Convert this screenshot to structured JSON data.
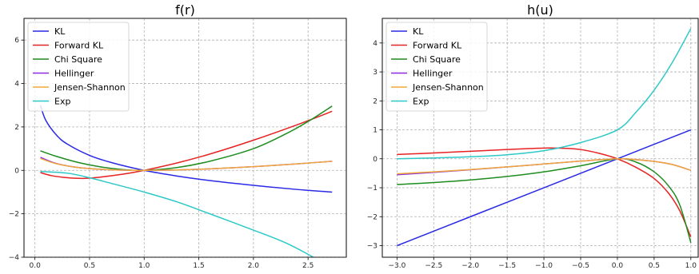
{
  "chart_data": [
    {
      "type": "line",
      "title": "f(r)",
      "xlabel": "",
      "ylabel": "",
      "xlim": [
        -0.1,
        2.85
      ],
      "ylim": [
        -4,
        7
      ],
      "xticks": [
        0.0,
        0.5,
        1.0,
        1.5,
        2.0,
        2.5
      ],
      "xtick_labels": [
        "0.0",
        "0.5",
        "1.0",
        "1.5",
        "2.0",
        "2.5"
      ],
      "yticks": [
        -4,
        -2,
        0,
        2,
        4,
        6
      ],
      "ytick_labels": [
        "−4",
        "−2",
        "0",
        "2",
        "4",
        "6"
      ],
      "grid": true,
      "legend_position": "top-left",
      "series": [
        {
          "name": "KL",
          "color": "#2a2ae6",
          "x": [
            0.05,
            0.1,
            0.2,
            0.3,
            0.5,
            0.7,
            1.0,
            1.3,
            1.6,
            2.0,
            2.4,
            2.72
          ],
          "y": [
            3.0,
            2.3,
            1.61,
            1.2,
            0.69,
            0.36,
            0.0,
            -0.26,
            -0.47,
            -0.69,
            -0.88,
            -1.0
          ]
        },
        {
          "name": "Forward KL",
          "color": "#e62222",
          "x": [
            0.05,
            0.15,
            0.3,
            0.45,
            0.6,
            0.8,
            1.0,
            1.3,
            1.6,
            2.0,
            2.4,
            2.72
          ],
          "y": [
            -0.1,
            -0.24,
            -0.34,
            -0.37,
            -0.31,
            -0.18,
            0.0,
            0.34,
            0.75,
            1.39,
            2.1,
            2.72
          ]
        },
        {
          "name": "Chi Square",
          "color": "#1f8c1f",
          "x": [
            0.05,
            0.2,
            0.4,
            0.6,
            0.8,
            1.0,
            1.3,
            1.6,
            2.0,
            2.3,
            2.5,
            2.72
          ],
          "y": [
            0.9,
            0.64,
            0.36,
            0.16,
            0.04,
            0.0,
            0.13,
            0.42,
            1.0,
            1.69,
            2.25,
            2.96
          ]
        },
        {
          "name": "Hellinger",
          "color": "#8a2be2",
          "x": [
            0.05,
            0.2,
            0.4,
            0.6,
            0.8,
            1.0,
            1.3,
            1.6,
            2.0,
            2.4,
            2.72
          ],
          "y": [
            0.6,
            0.31,
            0.13,
            0.05,
            0.01,
            0.0,
            0.02,
            0.07,
            0.17,
            0.3,
            0.42
          ]
        },
        {
          "name": "Jensen-Shannon",
          "color": "#f0a83c",
          "x": [
            0.05,
            0.2,
            0.4,
            0.6,
            0.8,
            1.0,
            1.3,
            1.6,
            2.0,
            2.4,
            2.72
          ],
          "y": [
            0.55,
            0.3,
            0.13,
            0.05,
            0.01,
            0.0,
            0.02,
            0.07,
            0.17,
            0.3,
            0.42
          ]
        },
        {
          "name": "Exp",
          "color": "#2ec8c8",
          "x": [
            0.05,
            0.3,
            0.5,
            0.7,
            1.0,
            1.3,
            1.6,
            2.0,
            2.3,
            2.55
          ],
          "y": [
            -0.05,
            -0.13,
            -0.34,
            -0.6,
            -1.0,
            -1.45,
            -2.0,
            -2.75,
            -3.35,
            -4.0
          ]
        }
      ]
    },
    {
      "type": "line",
      "title": "h(u)",
      "xlabel": "",
      "ylabel": "",
      "xlim": [
        -3.2,
        1.1
      ],
      "ylim": [
        -3.4,
        4.85
      ],
      "xticks": [
        -3.0,
        -2.5,
        -2.0,
        -1.5,
        -1.0,
        -0.5,
        0.0,
        0.5,
        1.0
      ],
      "xtick_labels": [
        "−3.0",
        "−2.5",
        "−2.0",
        "−1.5",
        "−1.0",
        "−0.5",
        "0.0",
        "0.5",
        "1.0"
      ],
      "yticks": [
        -3,
        -2,
        -1,
        0,
        1,
        2,
        3,
        4
      ],
      "ytick_labels": [
        "−3",
        "−2",
        "−1",
        "0",
        "1",
        "2",
        "3",
        "4"
      ],
      "grid": true,
      "legend_position": "top-left",
      "series": [
        {
          "name": "KL",
          "color": "#2a2ae6",
          "x": [
            -3.0,
            -2.0,
            -1.0,
            0.0,
            1.0
          ],
          "y": [
            -3.0,
            -2.0,
            -1.0,
            0.0,
            1.0
          ]
        },
        {
          "name": "Forward KL",
          "color": "#e62222",
          "x": [
            -3.0,
            -2.5,
            -2.0,
            -1.5,
            -1.0,
            -0.7,
            -0.5,
            -0.25,
            0.0,
            0.25,
            0.5,
            0.7,
            0.85,
            1.0
          ],
          "y": [
            0.15,
            0.2,
            0.26,
            0.32,
            0.37,
            0.36,
            0.32,
            0.19,
            0.0,
            -0.29,
            -0.68,
            -1.2,
            -1.8,
            -2.7
          ]
        },
        {
          "name": "Chi Square",
          "color": "#1f8c1f",
          "x": [
            -3.0,
            -2.5,
            -2.0,
            -1.5,
            -1.0,
            -0.5,
            0.0,
            0.25,
            0.5,
            0.7,
            0.85,
            1.0
          ],
          "y": [
            -0.89,
            -0.82,
            -0.73,
            -0.61,
            -0.45,
            -0.24,
            0.0,
            -0.11,
            -0.45,
            -0.95,
            -1.6,
            -2.9
          ]
        },
        {
          "name": "Hellinger",
          "color": "#8a2be2",
          "x": [
            -3.0,
            -2.5,
            -2.0,
            -1.5,
            -1.0,
            -0.5,
            0.0,
            0.25,
            0.5,
            0.75,
            1.0
          ],
          "y": [
            -0.55,
            -0.47,
            -0.38,
            -0.28,
            -0.18,
            -0.08,
            0.0,
            -0.03,
            -0.09,
            -0.2,
            -0.4
          ]
        },
        {
          "name": "Jensen-Shannon",
          "color": "#f0a83c",
          "x": [
            -3.0,
            -2.5,
            -2.0,
            -1.5,
            -1.0,
            -0.5,
            0.0,
            0.25,
            0.5,
            0.75,
            1.0
          ],
          "y": [
            -0.52,
            -0.45,
            -0.37,
            -0.28,
            -0.18,
            -0.08,
            0.0,
            -0.03,
            -0.09,
            -0.2,
            -0.4
          ]
        },
        {
          "name": "Exp",
          "color": "#2ec8c8",
          "x": [
            -3.0,
            -2.5,
            -2.0,
            -1.5,
            -1.0,
            -0.5,
            0.0,
            0.25,
            0.5,
            0.75,
            1.0
          ],
          "y": [
            0.0,
            0.03,
            0.07,
            0.14,
            0.28,
            0.56,
            1.0,
            1.6,
            2.37,
            3.34,
            4.5
          ]
        }
      ]
    }
  ]
}
